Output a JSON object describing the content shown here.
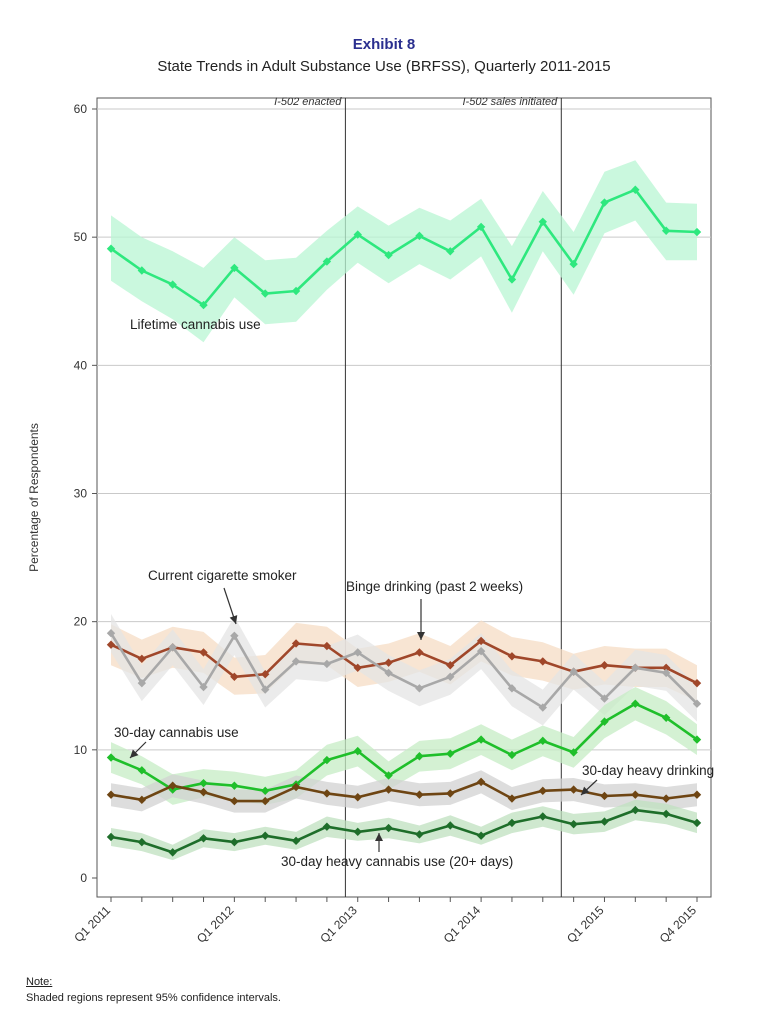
{
  "header": {
    "exhibit": "Exhibit 8",
    "title": "State Trends in Adult Substance Use (BRFSS), Quarterly 2011-2015"
  },
  "note": {
    "heading": "Note:",
    "text": "Shaded regions represent 95% confidence intervals."
  },
  "chart_data": {
    "type": "line",
    "title": "State Trends in Adult Substance Use (BRFSS), Quarterly 2011-2015",
    "ylabel": "Percentage of Respondents",
    "xlabel": "",
    "ylim": [
      0,
      60
    ],
    "yticks": [
      0,
      10,
      20,
      30,
      40,
      50,
      60
    ],
    "grid": true,
    "x": [
      "Q1 2011",
      "Q2 2011",
      "Q3 2011",
      "Q4 2011",
      "Q1 2012",
      "Q2 2012",
      "Q3 2012",
      "Q4 2012",
      "Q1 2013",
      "Q2 2013",
      "Q3 2013",
      "Q4 2013",
      "Q1 2014",
      "Q2 2014",
      "Q3 2014",
      "Q4 2014",
      "Q1 2015",
      "Q2 2015",
      "Q3 2015",
      "Q4 2015"
    ],
    "xtick_labels": [
      {
        "x": "Q1 2011",
        "label": "Q1 2011"
      },
      {
        "x": "Q1 2012",
        "label": "Q1 2012"
      },
      {
        "x": "Q1 2013",
        "label": "Q1 2013"
      },
      {
        "x": "Q1 2014",
        "label": "Q1 2014"
      },
      {
        "x": "Q1 2015",
        "label": "Q1 2015"
      },
      {
        "x": "Q4 2015",
        "label": "Q4 2015"
      }
    ],
    "events": [
      {
        "label": "I-502 enacted",
        "x": "Q4 2012"
      },
      {
        "label": "I-502 sales initiated",
        "x": "Q3 2014"
      }
    ],
    "series": [
      {
        "name": "Lifetime cannabis use",
        "color": "#2ee87e",
        "band_color": "#b8f5d3",
        "values": [
          49.1,
          47.4,
          46.3,
          44.7,
          47.6,
          45.6,
          45.8,
          48.1,
          50.2,
          48.6,
          50.1,
          48.9,
          50.8,
          46.7,
          51.2,
          47.9,
          52.7,
          53.7,
          50.5,
          50.4
        ],
        "lower": [
          46.6,
          45.0,
          43.6,
          41.8,
          45.3,
          43.2,
          43.4,
          45.9,
          48.0,
          46.4,
          47.9,
          46.7,
          48.5,
          44.1,
          48.9,
          45.5,
          50.3,
          51.3,
          48.2,
          48.2
        ],
        "upper": [
          51.7,
          50.0,
          48.9,
          47.6,
          50.0,
          48.2,
          48.4,
          50.5,
          52.4,
          50.9,
          52.3,
          51.3,
          53.0,
          49.3,
          53.6,
          50.4,
          55.1,
          56.0,
          52.7,
          52.6
        ]
      },
      {
        "name": "Binge drinking (past 2 weeks)",
        "color": "#a0472a",
        "band_color": "#f6dcc4",
        "values": [
          18.2,
          17.1,
          18.0,
          17.6,
          15.7,
          15.9,
          18.3,
          18.1,
          16.4,
          16.8,
          17.6,
          16.6,
          18.5,
          17.3,
          16.9,
          16.1,
          16.6,
          16.4,
          16.4,
          15.2
        ],
        "lower": [
          16.6,
          15.6,
          16.4,
          16.0,
          14.3,
          14.4,
          16.7,
          16.6,
          14.9,
          15.3,
          16.1,
          15.1,
          16.9,
          15.8,
          15.4,
          14.7,
          15.1,
          14.9,
          14.9,
          13.8
        ],
        "upper": [
          19.8,
          18.6,
          19.6,
          19.2,
          17.2,
          17.4,
          19.9,
          19.6,
          17.9,
          18.3,
          19.1,
          18.1,
          20.1,
          18.8,
          18.4,
          17.5,
          18.1,
          17.9,
          17.9,
          16.6
        ]
      },
      {
        "name": "Current cigarette smoker",
        "color": "#a8a8a8",
        "band_color": "#e4e4e4",
        "values": [
          19.1,
          15.2,
          18.0,
          14.9,
          18.9,
          14.7,
          16.9,
          16.7,
          17.6,
          16.0,
          14.8,
          15.7,
          17.7,
          14.8,
          13.3,
          16.1,
          14.0,
          16.4,
          16.0,
          13.6
        ],
        "lower": [
          17.6,
          13.8,
          16.6,
          13.5,
          17.4,
          13.3,
          15.5,
          15.3,
          16.2,
          14.6,
          13.4,
          14.3,
          16.3,
          13.4,
          11.9,
          14.7,
          12.7,
          15.0,
          14.6,
          12.2
        ],
        "upper": [
          20.6,
          16.6,
          19.4,
          16.3,
          20.4,
          16.1,
          18.3,
          18.1,
          19.0,
          17.4,
          16.2,
          17.1,
          19.1,
          16.2,
          14.7,
          17.5,
          15.3,
          17.8,
          17.4,
          15.0
        ]
      },
      {
        "name": "30-day cannabis use",
        "color": "#1fbf2a",
        "band_color": "#c6ecc4",
        "values": [
          9.4,
          8.4,
          6.9,
          7.4,
          7.2,
          6.8,
          7.3,
          9.2,
          9.9,
          8.0,
          9.5,
          9.7,
          10.8,
          9.6,
          10.7,
          9.8,
          12.2,
          13.6,
          12.5,
          10.8
        ],
        "lower": [
          8.2,
          7.3,
          5.7,
          6.3,
          6.1,
          5.7,
          6.2,
          8.0,
          8.7,
          6.9,
          8.3,
          8.5,
          9.6,
          8.4,
          9.5,
          8.6,
          10.9,
          12.3,
          11.2,
          9.6
        ],
        "upper": [
          10.6,
          9.5,
          8.1,
          8.5,
          8.3,
          7.9,
          8.4,
          10.4,
          11.1,
          9.1,
          10.7,
          10.9,
          12.0,
          10.8,
          11.9,
          11.0,
          13.5,
          14.9,
          13.8,
          12.0
        ]
      },
      {
        "name": "30-day heavy drinking",
        "color": "#6e4513",
        "band_color": "#d2d2d2",
        "values": [
          6.5,
          6.1,
          7.2,
          6.7,
          6.0,
          6.0,
          7.1,
          6.6,
          6.3,
          6.9,
          6.5,
          6.6,
          7.5,
          6.2,
          6.8,
          6.9,
          6.4,
          6.5,
          6.2,
          6.5
        ],
        "lower": [
          5.6,
          5.2,
          6.3,
          5.8,
          5.1,
          5.1,
          6.2,
          5.7,
          5.4,
          6.0,
          5.6,
          5.7,
          6.6,
          5.3,
          5.9,
          6.0,
          5.5,
          5.6,
          5.3,
          5.6
        ],
        "upper": [
          7.4,
          7.0,
          8.1,
          7.6,
          6.9,
          6.9,
          8.0,
          7.5,
          7.2,
          7.8,
          7.4,
          7.5,
          8.4,
          7.1,
          7.7,
          7.8,
          7.3,
          7.4,
          7.1,
          7.4
        ]
      },
      {
        "name": "30-day heavy cannabis use (20+ days)",
        "color": "#1e6e2a",
        "band_color": "#bfe0bf",
        "values": [
          3.2,
          2.8,
          2.0,
          3.1,
          2.8,
          3.3,
          2.9,
          4.0,
          3.6,
          3.9,
          3.4,
          4.1,
          3.3,
          4.3,
          4.8,
          4.2,
          4.4,
          5.3,
          5.0,
          4.3
        ],
        "lower": [
          2.5,
          2.1,
          1.4,
          2.4,
          2.1,
          2.6,
          2.2,
          3.2,
          2.9,
          3.1,
          2.7,
          3.3,
          2.6,
          3.5,
          4.0,
          3.4,
          3.6,
          4.5,
          4.2,
          3.5
        ],
        "upper": [
          3.9,
          3.5,
          2.6,
          3.8,
          3.5,
          4.0,
          3.6,
          4.8,
          4.3,
          4.7,
          4.1,
          4.9,
          4.0,
          5.1,
          5.6,
          5.0,
          5.2,
          6.1,
          5.8,
          5.1
        ]
      }
    ],
    "annotations": [
      {
        "text": "Lifetime cannabis use",
        "series": "Lifetime cannabis use"
      },
      {
        "text": "Current cigarette smoker",
        "series": "Current cigarette smoker"
      },
      {
        "text": "Binge drinking (past 2 weeks)",
        "series": "Binge drinking (past 2 weeks)"
      },
      {
        "text": "30-day cannabis use",
        "series": "30-day cannabis use"
      },
      {
        "text": "30-day heavy drinking",
        "series": "30-day heavy drinking"
      },
      {
        "text": "30-day heavy cannabis use (20+ days)",
        "series": "30-day heavy cannabis use (20+ days)"
      }
    ]
  }
}
